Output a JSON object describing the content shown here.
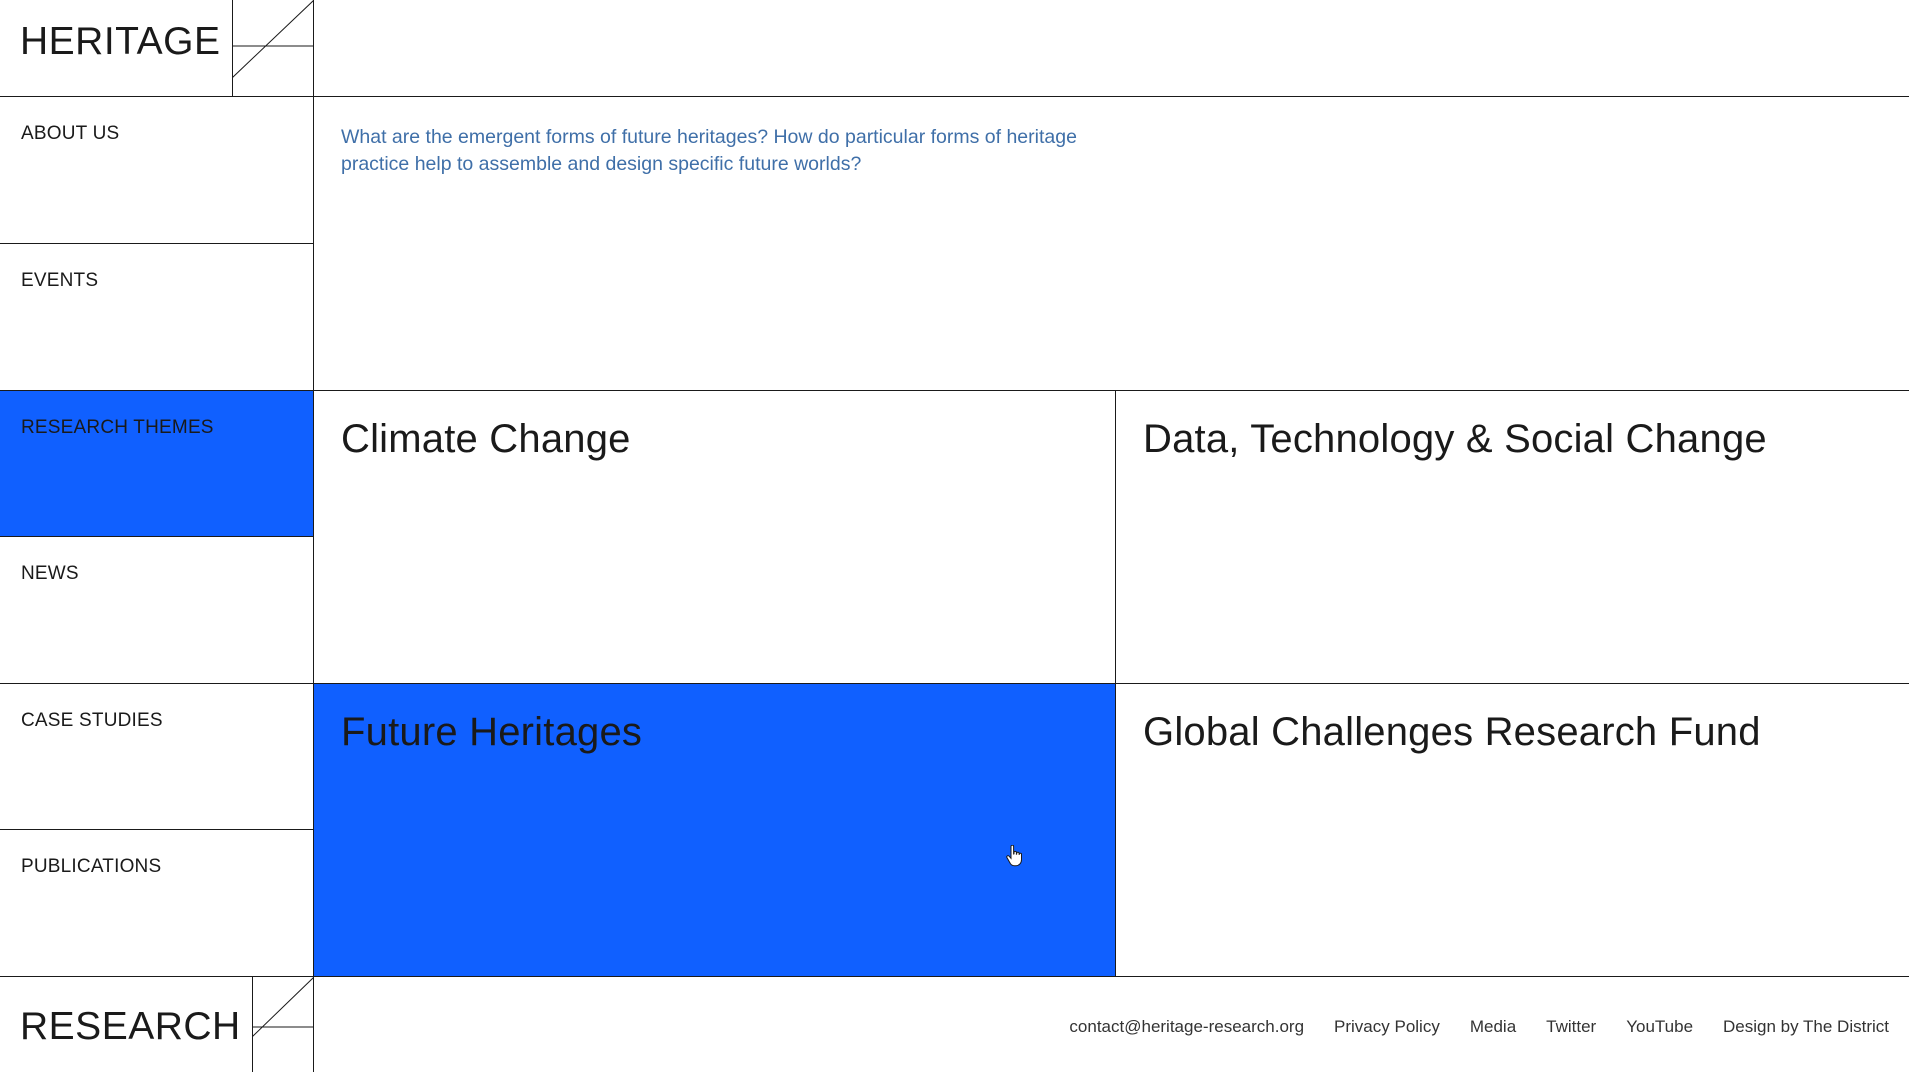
{
  "brand": {
    "top_logo": "HERITAGE",
    "bottom_logo": "RESEARCH"
  },
  "colors": {
    "accent": "#1060ff",
    "intro_text": "#3f6fa8",
    "line": "#1a1a1a"
  },
  "nav": {
    "items": [
      {
        "label": "ABOUT US",
        "active": false
      },
      {
        "label": "EVENTS",
        "active": false
      },
      {
        "label": "RESEARCH THEMES",
        "active": true
      },
      {
        "label": "NEWS",
        "active": false
      },
      {
        "label": "CASE STUDIES",
        "active": false
      },
      {
        "label": "PUBLICATIONS",
        "active": false
      }
    ]
  },
  "intro": {
    "text": "What are the emergent forms of future heritages? How do particular forms of heritage practice help to assemble and design specific future worlds?"
  },
  "themes": [
    {
      "title": "Climate Change",
      "active": false
    },
    {
      "title": "Data, Technology & Social Change",
      "active": false
    },
    {
      "title": "Future Heritages",
      "active": true
    },
    {
      "title": "Global Challenges Research Fund",
      "active": false
    }
  ],
  "footer": {
    "links": [
      "contact@heritage-research.org",
      "Privacy Policy",
      "Media",
      "Twitter",
      "YouTube",
      "Design by The District"
    ]
  },
  "icons": {
    "logo_mark": "diagonal-slash-mark",
    "cursor": "hand-pointer-icon"
  }
}
